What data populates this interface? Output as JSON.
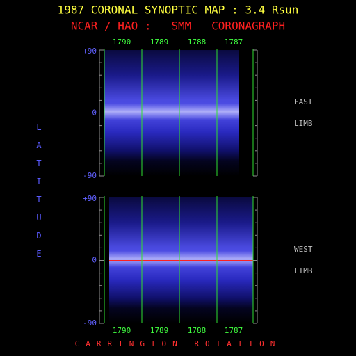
{
  "header": {
    "title": "1987 CORONAL SYNOPTIC MAP : 3.4 Rsun",
    "subtitle": "NCAR / HAO :   SMM   CORONAGRAPH"
  },
  "y_axis_label": "LATITUDE",
  "x_axis_label": "CARRINGTON ROTATION",
  "panels": [
    {
      "yticks": [
        "+90",
        "0",
        "-90"
      ],
      "rotations": [
        "1790",
        "1789",
        "1788",
        "1787"
      ],
      "limb_labels": [
        "EAST",
        "LIMB"
      ]
    },
    {
      "yticks": [
        "+90",
        "0",
        "-90"
      ],
      "rotations": [
        "1790",
        "1789",
        "1788",
        "1787"
      ],
      "limb_labels": [
        "WEST",
        "LIMB"
      ]
    }
  ]
}
